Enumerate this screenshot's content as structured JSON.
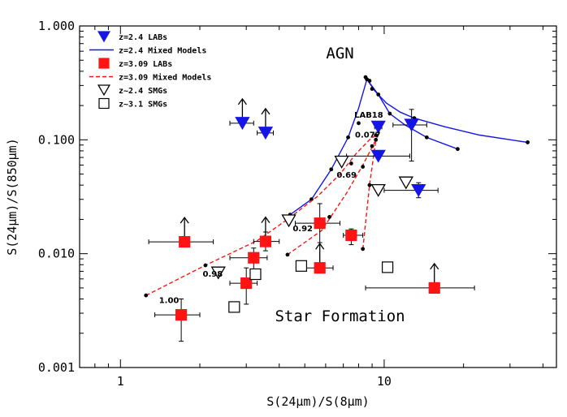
{
  "chart_data": {
    "type": "scatter",
    "title": "",
    "xlabel": "S(24μm)/S(8μm)",
    "ylabel": "S(24μm)/S(850μm)",
    "xscale": "log",
    "yscale": "log",
    "xlim": [
      0.7,
      45
    ],
    "ylim": [
      0.001,
      1.0
    ],
    "x_tick_labels": [
      {
        "v": 1,
        "label": "1"
      },
      {
        "v": 10,
        "label": "10"
      }
    ],
    "y_tick_labels": [
      {
        "v": 0.001,
        "label": "0.001"
      },
      {
        "v": 0.01,
        "label": "0.010"
      },
      {
        "v": 0.1,
        "label": "0.100"
      },
      {
        "v": 1.0,
        "label": "1.000"
      }
    ],
    "grid": false,
    "legend_position": "top-left",
    "colors": {
      "blue": "#1515e6",
      "red": "#ff1414",
      "black": "#000000"
    },
    "legend": [
      {
        "label": "z=2.4 LABs",
        "marker": "triangle-down-filled",
        "color": "#1515e6"
      },
      {
        "label": "z=2.4 Mixed Models",
        "marker": "line-solid",
        "color": "#1515e6"
      },
      {
        "label": "z=3.09 LABs",
        "marker": "square-filled",
        "color": "#ff1414"
      },
      {
        "label": "z=3.09 Mixed Models",
        "marker": "line-dashed",
        "color": "#ff1414"
      },
      {
        "label": "z~2.4 SMGs",
        "marker": "triangle-down-open",
        "color": "#000000"
      },
      {
        "label": "z~3.1 SMGs",
        "marker": "square-open",
        "color": "#000000"
      }
    ],
    "annotations": [
      {
        "text": "AGN",
        "x": 6.8,
        "y": 0.52,
        "size": "big"
      },
      {
        "text": "Star Formation",
        "x": 6.8,
        "y": 0.00255,
        "size": "big"
      },
      {
        "text": "LAB18",
        "x": 7.7,
        "y": 0.156,
        "size": "small"
      },
      {
        "text": "0.077",
        "x": 7.75,
        "y": 0.105,
        "size": "small"
      },
      {
        "text": "0.69",
        "x": 6.6,
        "y": 0.0465,
        "size": "small"
      },
      {
        "text": "0.92",
        "x": 4.5,
        "y": 0.0158,
        "size": "small"
      },
      {
        "text": "0.98",
        "x": 2.05,
        "y": 0.0063,
        "size": "small"
      },
      {
        "text": "1.00",
        "x": 1.4,
        "y": 0.0037,
        "size": "small"
      }
    ],
    "series": [
      {
        "name": "z=2.4 Mixed Models",
        "kind": "line",
        "style": "solid",
        "color": "#1515e6",
        "branches": [
          [
            [
              4.4,
              0.022
            ],
            [
              5.3,
              0.03
            ],
            [
              6.3,
              0.055
            ],
            [
              7.3,
              0.105
            ],
            [
              8.0,
              0.19
            ],
            [
              8.6,
              0.34
            ],
            [
              9.2,
              0.27
            ],
            [
              10.2,
              0.21
            ],
            [
              11.5,
              0.175
            ],
            [
              13.0,
              0.155
            ],
            [
              17.0,
              0.13
            ],
            [
              23.0,
              0.11
            ],
            [
              35.0,
              0.095
            ]
          ],
          [
            [
              8.6,
              0.34
            ],
            [
              9.5,
              0.25
            ],
            [
              10.5,
              0.17
            ],
            [
              12.0,
              0.135
            ],
            [
              14.5,
              0.105
            ],
            [
              19.0,
              0.083
            ]
          ]
        ],
        "dots": [
          [
            4.4,
            0.022
          ],
          [
            5.3,
            0.03
          ],
          [
            6.3,
            0.055
          ],
          [
            7.3,
            0.105
          ],
          [
            8.0,
            0.14
          ],
          [
            8.5,
            0.355
          ],
          [
            8.6,
            0.34
          ],
          [
            8.8,
            0.33
          ],
          [
            9.0,
            0.28
          ],
          [
            9.5,
            0.25
          ],
          [
            10.5,
            0.17
          ],
          [
            13.0,
            0.155
          ],
          [
            14.5,
            0.105
          ],
          [
            19.0,
            0.083
          ],
          [
            35.0,
            0.095
          ]
        ]
      },
      {
        "name": "z=3.09 Mixed Models",
        "kind": "line",
        "style": "dashed",
        "color": "#ff1414",
        "branches": [
          [
            [
              1.25,
              0.0043
            ],
            [
              2.1,
              0.0079
            ],
            [
              3.3,
              0.013
            ],
            [
              4.3,
              0.02
            ],
            [
              5.6,
              0.032
            ],
            [
              6.8,
              0.05
            ],
            [
              7.8,
              0.075
            ],
            [
              8.8,
              0.1
            ],
            [
              9.3,
              0.11
            ]
          ],
          [
            [
              4.3,
              0.0098
            ],
            [
              5.8,
              0.016
            ],
            [
              7.2,
              0.034
            ],
            [
              8.3,
              0.06
            ],
            [
              9.3,
              0.1
            ]
          ],
          [
            [
              8.3,
              0.011
            ],
            [
              8.8,
              0.04
            ],
            [
              9.3,
              0.1
            ]
          ]
        ],
        "dots": [
          [
            1.25,
            0.0043
          ],
          [
            2.1,
            0.0079
          ],
          [
            4.3,
            0.0098
          ],
          [
            6.2,
            0.021
          ],
          [
            7.5,
            0.062
          ],
          [
            8.3,
            0.058
          ],
          [
            8.3,
            0.011
          ],
          [
            8.8,
            0.04
          ],
          [
            9.0,
            0.088
          ],
          [
            9.3,
            0.1
          ],
          [
            9.3,
            0.11
          ]
        ]
      },
      {
        "name": "z=2.4 LABs",
        "kind": "points",
        "marker": "triangle-down-filled",
        "color": "#1515e6",
        "points": [
          {
            "x": 2.9,
            "y": 0.14,
            "xerr": [
              2.6,
              3.2
            ],
            "yerr": null,
            "lower_limit": true
          },
          {
            "x": 3.55,
            "y": 0.115,
            "xerr": [
              3.3,
              3.8
            ],
            "yerr": null,
            "lower_limit": true
          },
          {
            "x": 9.5,
            "y": 0.13,
            "xerr": [
              9.2,
              9.8
            ],
            "yerr": null,
            "lower_limit": false
          },
          {
            "x": 9.5,
            "y": 0.072,
            "xerr": [
              7.2,
              12.5
            ],
            "yerr": null,
            "lower_limit": false
          },
          {
            "x": 12.7,
            "y": 0.135,
            "xerr": [
              10.8,
              14.5
            ],
            "yerr": [
              0.065,
              0.185
            ],
            "lower_limit": false
          },
          {
            "x": 13.5,
            "y": 0.036,
            "xerr": [
              10.0,
              16.0
            ],
            "yerr": [
              0.031,
              0.042
            ],
            "lower_limit": false
          }
        ]
      },
      {
        "name": "z=3.09 LABs",
        "kind": "points",
        "marker": "square-filled",
        "color": "#ff1414",
        "points": [
          {
            "x": 1.75,
            "y": 0.0127,
            "xerr": [
              1.28,
              2.25
            ],
            "yerr": null,
            "lower_limit": true
          },
          {
            "x": 1.7,
            "y": 0.0029,
            "xerr": [
              1.35,
              2.0
            ],
            "yerr": [
              0.0017,
              0.004
            ],
            "lower_limit": false
          },
          {
            "x": 3.0,
            "y": 0.0055,
            "xerr": [
              2.6,
              3.3
            ],
            "yerr": [
              0.0036,
              0.0075
            ],
            "lower_limit": false
          },
          {
            "x": 3.2,
            "y": 0.0092,
            "xerr": [
              2.6,
              3.6
            ],
            "yerr": [
              0.007,
              0.0112
            ],
            "lower_limit": false
          },
          {
            "x": 3.55,
            "y": 0.0128,
            "xerr": [
              3.2,
              4.0
            ],
            "yerr": [
              0.0106,
              0.0155
            ],
            "lower_limit": true
          },
          {
            "x": 5.7,
            "y": 0.0185,
            "xerr": [
              4.6,
              6.8
            ],
            "yerr": [
              0.0125,
              0.0275
            ],
            "lower_limit": false
          },
          {
            "x": 5.7,
            "y": 0.0075,
            "xerr": [
              5.0,
              6.4
            ],
            "yerr": null,
            "lower_limit": true
          },
          {
            "x": 7.5,
            "y": 0.0145,
            "xerr": [
              7.0,
              8.3
            ],
            "yerr": [
              0.012,
              0.0165
            ],
            "lower_limit": false
          },
          {
            "x": 15.5,
            "y": 0.005,
            "xerr": [
              8.5,
              22.0
            ],
            "yerr": null,
            "lower_limit": true
          }
        ]
      },
      {
        "name": "z~2.4 SMGs",
        "kind": "points",
        "marker": "triangle-down-open",
        "color": "#000000",
        "points": [
          {
            "x": 2.35,
            "y": 0.0068
          },
          {
            "x": 4.35,
            "y": 0.0195
          },
          {
            "x": 6.9,
            "y": 0.064
          },
          {
            "x": 9.5,
            "y": 0.036
          },
          {
            "x": 12.1,
            "y": 0.042
          }
        ]
      },
      {
        "name": "z~3.1 SMGs",
        "kind": "points",
        "marker": "square-open",
        "color": "#000000",
        "points": [
          {
            "x": 2.7,
            "y": 0.0034
          },
          {
            "x": 3.25,
            "y": 0.0066
          },
          {
            "x": 4.85,
            "y": 0.0078
          },
          {
            "x": 10.3,
            "y": 0.0076
          }
        ]
      }
    ]
  }
}
